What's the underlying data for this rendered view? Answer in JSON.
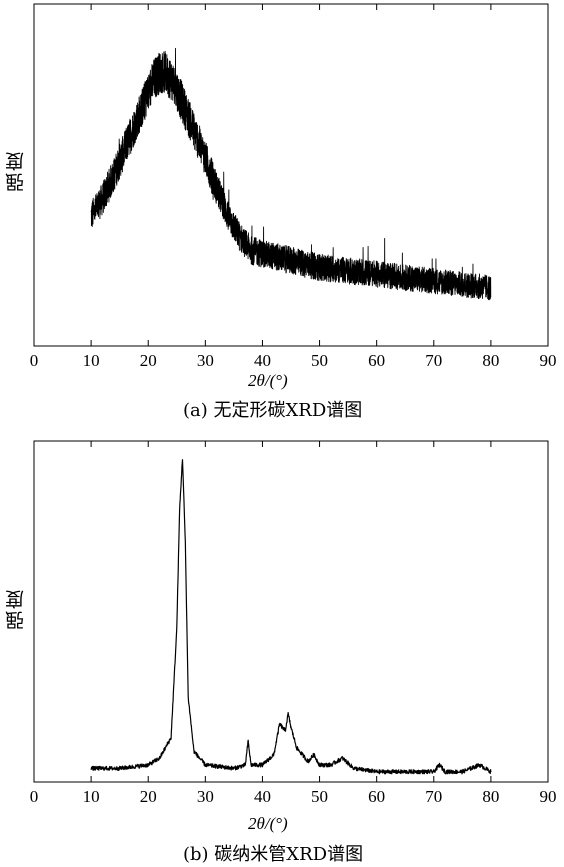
{
  "chart_data": [
    {
      "type": "line",
      "caption": "(a) 无定形碳XRD谱图",
      "ylabel": "强度",
      "xlabel": "2θ/(°)",
      "xlim": [
        0,
        90
      ],
      "xticks": [
        0,
        10,
        20,
        30,
        40,
        50,
        60,
        70,
        80,
        90
      ],
      "yticks": [],
      "grid": false,
      "series": [
        {
          "x": [
            10,
            12,
            14,
            16,
            18,
            20,
            21,
            22,
            23,
            24,
            25,
            26,
            28,
            30,
            32,
            34,
            36,
            38,
            40,
            45,
            50,
            55,
            60,
            65,
            70,
            75,
            80
          ],
          "y": [
            0.38,
            0.43,
            0.5,
            0.58,
            0.66,
            0.74,
            0.78,
            0.8,
            0.8,
            0.78,
            0.75,
            0.71,
            0.63,
            0.55,
            0.46,
            0.38,
            0.32,
            0.28,
            0.27,
            0.25,
            0.23,
            0.22,
            0.21,
            0.2,
            0.19,
            0.18,
            0.17
          ],
          "noise": 0.05
        }
      ],
      "ylim": [
        0,
        1
      ]
    },
    {
      "type": "line",
      "caption": "(b) 碳纳米管XRD谱图",
      "ylabel": "强度",
      "xlabel": "2θ/(°)",
      "xlim": [
        0,
        90
      ],
      "xticks": [
        0,
        10,
        20,
        30,
        40,
        50,
        60,
        70,
        80,
        90
      ],
      "yticks": [],
      "grid": false,
      "series": [
        {
          "x": [
            10,
            15,
            20,
            22,
            24,
            25,
            25.5,
            26,
            26.5,
            27,
            28,
            30,
            35,
            37,
            37.5,
            38,
            40,
            42,
            43,
            44,
            44.5,
            45,
            46,
            48,
            49,
            50,
            52,
            54,
            56,
            60,
            65,
            70,
            71,
            72,
            75,
            78,
            80
          ],
          "y": [
            0.04,
            0.04,
            0.05,
            0.07,
            0.13,
            0.45,
            0.8,
            0.95,
            0.7,
            0.25,
            0.09,
            0.05,
            0.04,
            0.05,
            0.12,
            0.05,
            0.05,
            0.08,
            0.17,
            0.15,
            0.2,
            0.16,
            0.1,
            0.06,
            0.08,
            0.05,
            0.05,
            0.07,
            0.04,
            0.03,
            0.03,
            0.03,
            0.05,
            0.03,
            0.03,
            0.05,
            0.03
          ]
        }
      ],
      "ylim": [
        0,
        1
      ]
    }
  ]
}
